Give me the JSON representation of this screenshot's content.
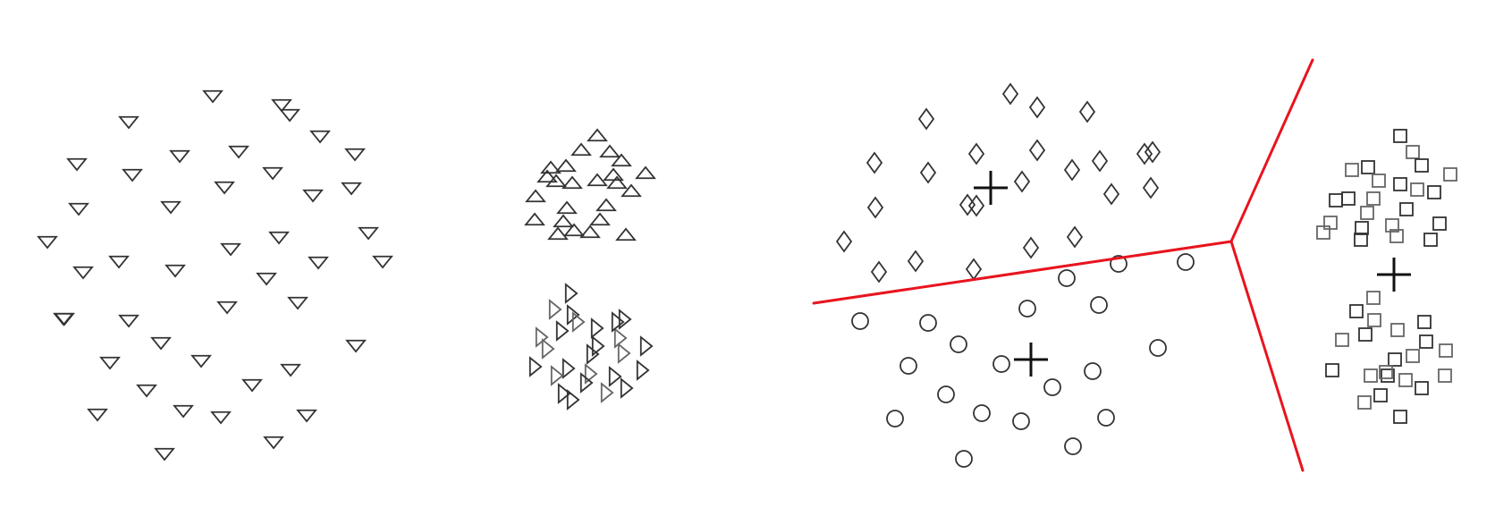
{
  "figure": {
    "description_visible_text": "",
    "colors": {
      "marker_stroke": "#333333",
      "center_stroke": "#111111",
      "boundary": "#e8141e",
      "background": "#ffffff"
    },
    "panels": [
      {
        "name": "before-clustering",
        "groups": [
          {
            "name": "large-scattered-group",
            "marker": "triangle-down",
            "count": 44
          },
          {
            "name": "upper-compact-group",
            "marker": "triangle-up",
            "count": 24
          },
          {
            "name": "lower-compact-group",
            "marker": "triangle-right",
            "count": 26
          }
        ]
      },
      {
        "name": "after-clustering",
        "groups": [
          {
            "name": "diamond-cluster",
            "marker": "diamond",
            "count": 24,
            "has_center": true
          },
          {
            "name": "circle-cluster",
            "marker": "circle",
            "count": 26,
            "has_center": true
          },
          {
            "name": "square-cluster",
            "marker": "square",
            "count": 44,
            "has_center": true
          }
        ],
        "boundaries": 3
      }
    ]
  }
}
